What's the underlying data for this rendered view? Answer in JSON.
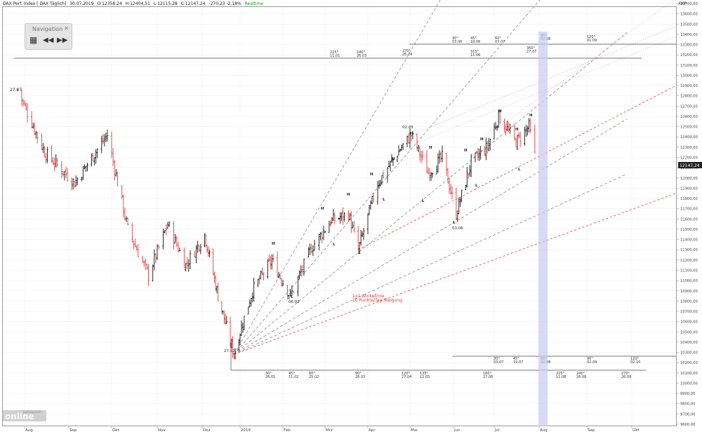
{
  "header": {
    "title": "DAX Perf. Index [ DAX Täglich]",
    "date": "30.07.2019",
    "open": "O:12358,24",
    "high": "H:12404,51",
    "low": "L:12115,28",
    "close": "C:12147,24",
    "change": "-270,23 -2,18%",
    "realtime": "Realtime"
  },
  "axis_unit": "XXP",
  "navigator": {
    "title": "Navigation",
    "close": "✕",
    "grid_icon": "▦",
    "back_icon": "◀◀",
    "fwd_icon": "▶▶"
  },
  "logo": {
    "brand": "Tradesignal®",
    "word": "online"
  },
  "annotations": {
    "wl_name": "1x1 Winkellinie",
    "wl_desc": "10 Punkte/Tag Steigung",
    "top_label": "27.07",
    "low_label": "27.12",
    "mid_l": "06.02",
    "jun_l": "03.06",
    "may_h": "02.05"
  },
  "colors": {
    "up": "#111111",
    "down": "#e23b3b",
    "gann": "#888888",
    "red": "#e23b3b",
    "pink": "#ee88b8",
    "band": "#b9b9f0",
    "price_box": "#222222"
  },
  "chart_data": {
    "type": "ohlc",
    "symbol": "DAX Perf. Index",
    "timeframe": "Täglich",
    "x_ticks": [
      "Aug",
      "Sep",
      "Okt",
      "Nov",
      "Dez",
      "2019",
      "Feb",
      "Mrz",
      "Apr",
      "Mai",
      "Jun",
      "Jul",
      "Aug",
      "Sep",
      "Okt"
    ],
    "y_ticks": [
      9600,
      9700,
      9800,
      9900,
      10000,
      10100,
      10200,
      10300,
      10400,
      10500,
      10600,
      10700,
      10800,
      10900,
      11000,
      11100,
      11200,
      11300,
      11400,
      11500,
      11600,
      11700,
      11800,
      11900,
      12000,
      12100,
      12200,
      12300,
      12400,
      12500,
      12600,
      12700,
      12800,
      12900,
      13000,
      13100,
      13200,
      13300,
      13400,
      13500,
      13600,
      13700
    ],
    "ylim": [
      9550,
      13800
    ],
    "last_price": "12147,24",
    "series": [
      {
        "date": "2018-07-27",
        "value": 12860
      },
      {
        "date": "2018-08-15",
        "value": 12250
      },
      {
        "date": "2018-09-05",
        "value": 11950
      },
      {
        "date": "2018-09-28",
        "value": 12420
      },
      {
        "date": "2018-10-12",
        "value": 11500
      },
      {
        "date": "2018-10-26",
        "value": 11050
      },
      {
        "date": "2018-11-08",
        "value": 11550
      },
      {
        "date": "2018-11-20",
        "value": 11150
      },
      {
        "date": "2018-12-03",
        "value": 11450
      },
      {
        "date": "2018-12-14",
        "value": 10850
      },
      {
        "date": "2018-12-27",
        "value": 10280
      },
      {
        "date": "2019-01-10",
        "value": 10900
      },
      {
        "date": "2019-01-24",
        "value": 11200
      },
      {
        "date": "2019-02-06",
        "value": 10850
      },
      {
        "date": "2019-02-20",
        "value": 11320
      },
      {
        "date": "2019-03-05",
        "value": 11580
      },
      {
        "date": "2019-03-18",
        "value": 11650
      },
      {
        "date": "2019-03-25",
        "value": 11300
      },
      {
        "date": "2019-04-08",
        "value": 11950
      },
      {
        "date": "2019-04-24",
        "value": 12280
      },
      {
        "date": "2019-05-02",
        "value": 12420
      },
      {
        "date": "2019-05-14",
        "value": 12050
      },
      {
        "date": "2019-05-24",
        "value": 12200
      },
      {
        "date": "2019-06-03",
        "value": 11650
      },
      {
        "date": "2019-06-14",
        "value": 12150
      },
      {
        "date": "2019-06-26",
        "value": 12300
      },
      {
        "date": "2019-07-04",
        "value": 12600
      },
      {
        "date": "2019-07-16",
        "value": 12350
      },
      {
        "date": "2019-07-25",
        "value": 12500
      },
      {
        "date": "2019-07-30",
        "value": 12147
      }
    ],
    "gann_angles": [
      {
        "label": "225°",
        "date": "11.01"
      },
      {
        "label": "240°",
        "date": "26.03"
      },
      {
        "label": "270°",
        "date": "26.04"
      },
      {
        "label": "30°",
        "date": "03.06"
      },
      {
        "label": "45°",
        "date": "18.06"
      },
      {
        "label": "60°",
        "date": "03.07"
      },
      {
        "label": "315°",
        "date": "11.06"
      },
      {
        "label": "360°",
        "date": "27.07"
      },
      {
        "label": "90°",
        "date": "02.08"
      },
      {
        "label": "120°",
        "date": "01.09"
      }
    ],
    "gann_angles_bottom": [
      {
        "label": "30°",
        "date": "26.01"
      },
      {
        "label": "45°",
        "date": "11.02"
      },
      {
        "label": "60°",
        "date": "25.02"
      },
      {
        "label": "90°",
        "date": "28.03"
      },
      {
        "label": "120°",
        "date": "27.04"
      },
      {
        "label": "135°",
        "date": "12.05"
      },
      {
        "label": "180°",
        "date": "27.06"
      },
      {
        "label": "225°",
        "date": "11.08"
      },
      {
        "label": "240°",
        "date": "26.08"
      },
      {
        "label": "270°",
        "date": "26.09"
      }
    ],
    "gann_angles_bottom2": [
      {
        "label": "30°",
        "date": "03.07"
      },
      {
        "label": "45°",
        "date": "19.07"
      },
      {
        "label": "60°",
        "date": "02.08"
      },
      {
        "label": "90°",
        "date": "02.09"
      },
      {
        "label": "120°",
        "date": "02.10"
      }
    ]
  }
}
